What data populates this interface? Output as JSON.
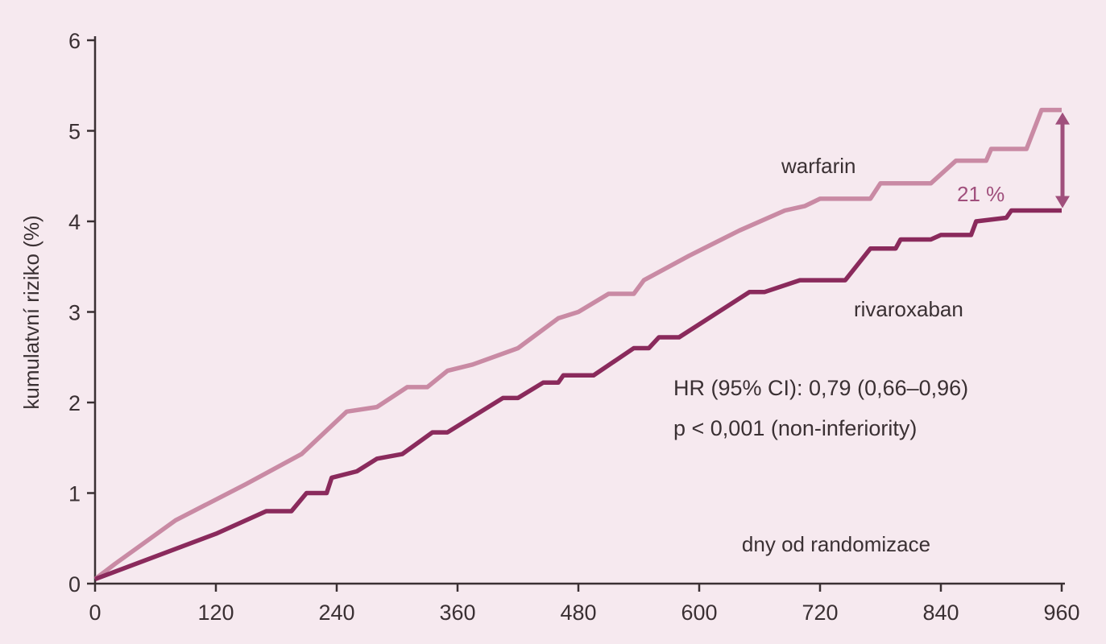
{
  "chart_data": {
    "type": "line",
    "title": "",
    "xlabel": "dny od randomizace",
    "ylabel": "kumulatvní riziko (%)",
    "xlim": [
      0,
      960
    ],
    "ylim": [
      0,
      6
    ],
    "xticks": [
      0,
      120,
      240,
      360,
      480,
      600,
      720,
      840,
      960
    ],
    "yticks": [
      0,
      1,
      2,
      3,
      4,
      5,
      6
    ],
    "grid": false,
    "legend": "inline labels",
    "colors": {
      "background": "#f6e9ef",
      "axis": "#3a3033",
      "warfarin": "#c98aa4",
      "rivaroxaban": "#8a2a5c",
      "difference": "#a04f7c"
    },
    "series": [
      {
        "name": "warfarin",
        "x": [
          0,
          20,
          80,
          150,
          205,
          250,
          280,
          310,
          330,
          350,
          375,
          420,
          460,
          480,
          510,
          535,
          545,
          590,
          640,
          685,
          705,
          720,
          770,
          780,
          830,
          855,
          885,
          890,
          925,
          940,
          960
        ],
        "y": [
          0.05,
          0.22,
          0.7,
          1.1,
          1.43,
          1.9,
          1.95,
          2.17,
          2.17,
          2.35,
          2.42,
          2.6,
          2.93,
          3.0,
          3.2,
          3.2,
          3.35,
          3.62,
          3.9,
          4.12,
          4.17,
          4.25,
          4.25,
          4.42,
          4.42,
          4.67,
          4.67,
          4.8,
          4.8,
          5.23,
          5.23
        ]
      },
      {
        "name": "rivaroxaban",
        "x": [
          0,
          120,
          170,
          195,
          210,
          230,
          235,
          260,
          280,
          305,
          335,
          350,
          405,
          420,
          445,
          460,
          465,
          495,
          535,
          550,
          560,
          580,
          650,
          665,
          700,
          745,
          770,
          795,
          800,
          830,
          840,
          870,
          875,
          905,
          910,
          960
        ],
        "y": [
          0.05,
          0.55,
          0.8,
          0.8,
          1.0,
          1.0,
          1.17,
          1.24,
          1.38,
          1.43,
          1.67,
          1.67,
          2.05,
          2.05,
          2.22,
          2.22,
          2.3,
          2.3,
          2.6,
          2.6,
          2.72,
          2.72,
          3.22,
          3.22,
          3.35,
          3.35,
          3.7,
          3.7,
          3.8,
          3.8,
          3.85,
          3.85,
          4.0,
          4.04,
          4.12,
          4.12
        ]
      }
    ],
    "annotations": {
      "warfarin_label": "warfarin",
      "rivaroxaban_label": "rivaroxaban",
      "difference_label": "21 %",
      "hr_text": "HR (95% CI): 0,79 (0,66–0,96)",
      "p_text": "p < 0,001 (non-inferiority)"
    }
  }
}
